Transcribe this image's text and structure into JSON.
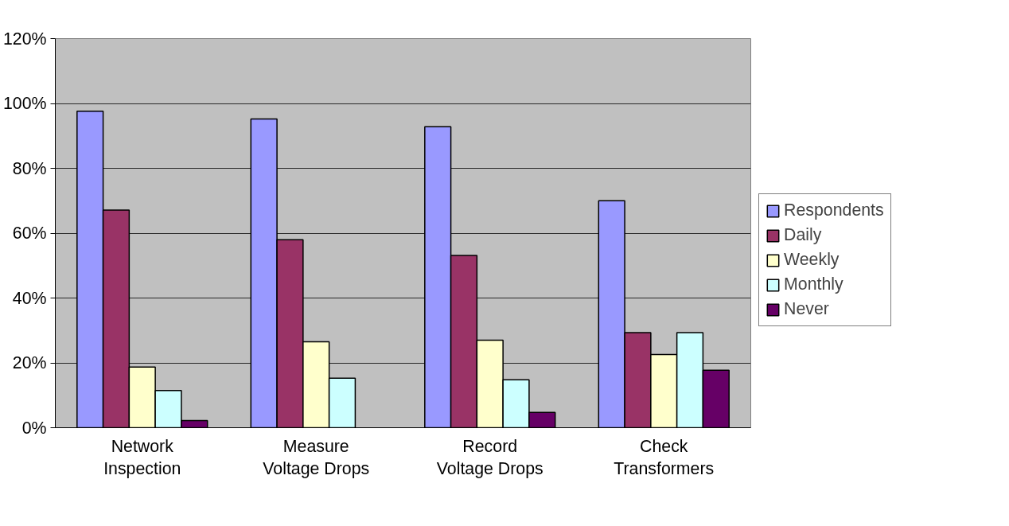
{
  "chart_data": {
    "type": "bar",
    "categories": [
      "Network Inspection",
      "Measure Voltage Drops",
      "Record Voltage Drops",
      "Check Transformers"
    ],
    "series": [
      {
        "name": "Respondents",
        "color": "#9999ff",
        "values": [
          97.6,
          95.2,
          92.8,
          70.0
        ]
      },
      {
        "name": "Daily",
        "color": "#993366",
        "values": [
          67.1,
          58.0,
          53.1,
          29.3
        ]
      },
      {
        "name": "Weekly",
        "color": "#ffffcc",
        "values": [
          18.7,
          26.5,
          27.0,
          22.6
        ]
      },
      {
        "name": "Monthly",
        "color": "#ccffff",
        "values": [
          11.5,
          15.3,
          14.8,
          29.3
        ]
      },
      {
        "name": "Never",
        "color": "#660066",
        "values": [
          2.2,
          null,
          4.7,
          17.7
        ]
      }
    ],
    "ylim": [
      0,
      120
    ],
    "yticks": [
      {
        "value": 0,
        "label": "0%"
      },
      {
        "value": 20,
        "label": "20%"
      },
      {
        "value": 40,
        "label": "40%"
      },
      {
        "value": 60,
        "label": "60%"
      },
      {
        "value": 80,
        "label": "80%"
      },
      {
        "value": 100,
        "label": "100%"
      },
      {
        "value": 120,
        "label": "120%"
      }
    ],
    "grid": "y",
    "legend": "right"
  }
}
